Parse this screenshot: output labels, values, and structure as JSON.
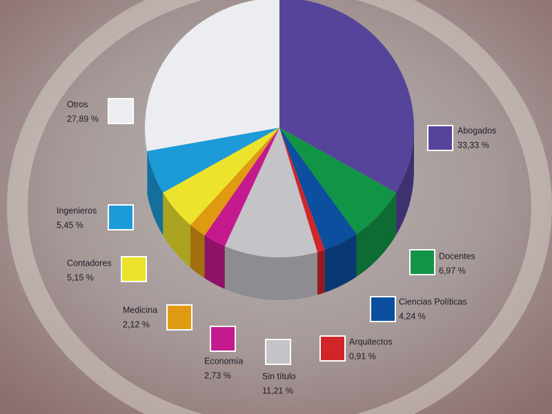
{
  "chart_data": {
    "type": "pie",
    "categories": [
      "Abogados",
      "Docentes",
      "Ciencias Políticas",
      "Arquitectos",
      "Sin título",
      "Economía",
      "Medicina",
      "Contadores",
      "Ingenieros",
      "Otros"
    ],
    "values": [
      33.33,
      6.97,
      4.24,
      0.91,
      11.21,
      2.73,
      2.12,
      5.15,
      5.45,
      27.89
    ],
    "value_labels": [
      "33,33 %",
      "6,97 %",
      "4,24 %",
      "0,91 %",
      "11,21 %",
      "2,73 %",
      "2,12 %",
      "5,15 %",
      "5,45 %",
      "27,89 %"
    ],
    "colors": [
      "#56449a",
      "#129447",
      "#0b4f9e",
      "#d0262a",
      "#c4c3c8",
      "#c5198e",
      "#e09a12",
      "#ece32c",
      "#1d9ad8",
      "#ecedf0"
    ]
  }
}
